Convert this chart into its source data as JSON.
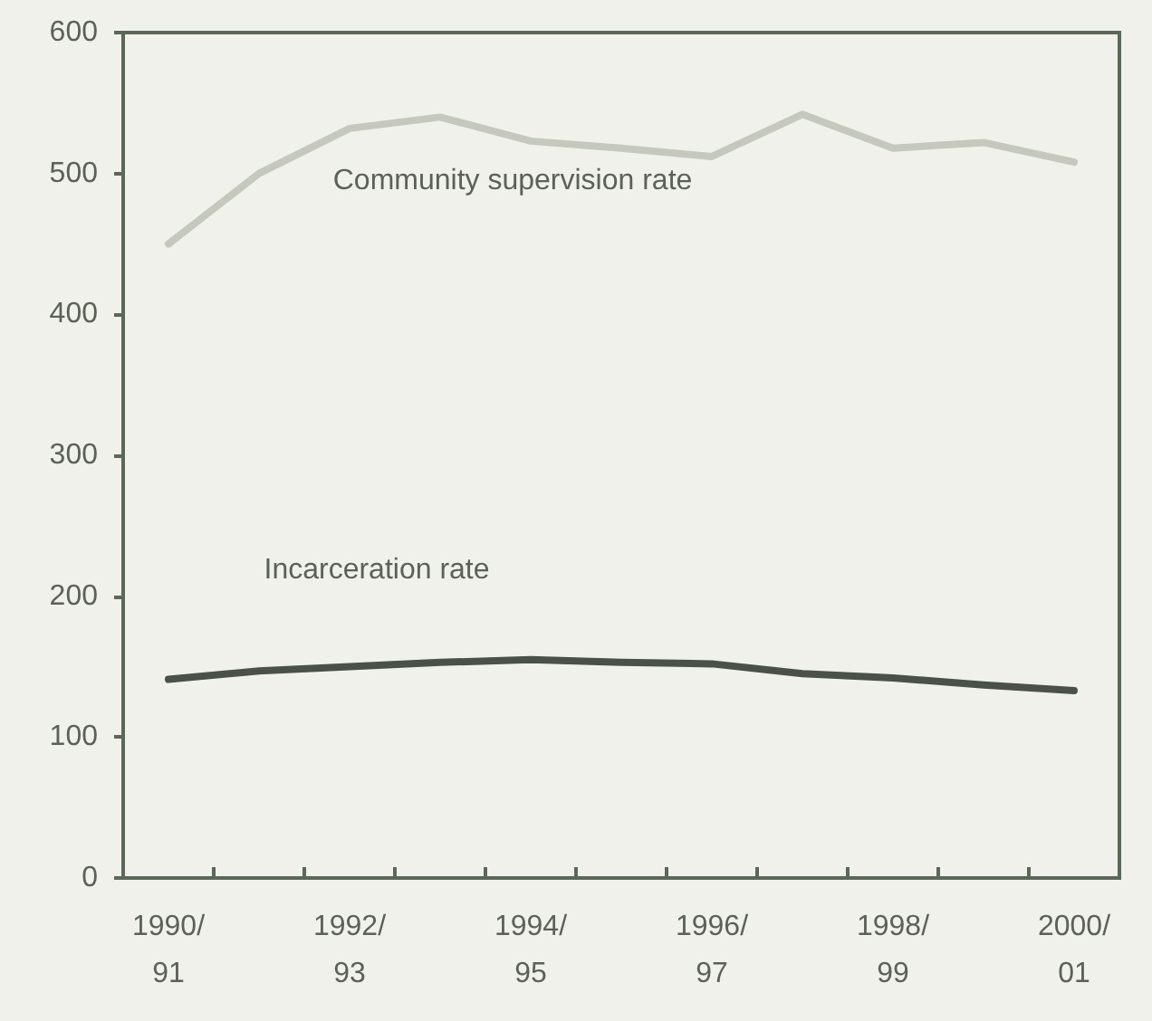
{
  "chart_data": {
    "type": "line",
    "categories": [
      "1990/\n91",
      null,
      "1992/\n93",
      null,
      "1994/\n95",
      null,
      "1996/\n97",
      null,
      "1998/\n99",
      null,
      "2000/\n01"
    ],
    "series": [
      {
        "name": "Community supervision rate",
        "color": "#c5c8bd",
        "values": [
          450,
          500,
          532,
          540,
          523,
          518,
          512,
          542,
          518,
          522,
          508
        ]
      },
      {
        "name": "Incarceration rate",
        "color": "#4a5148",
        "values": [
          141,
          147,
          150,
          153,
          155,
          153,
          152,
          145,
          142,
          137,
          133
        ]
      }
    ],
    "ylim": [
      0,
      600
    ],
    "yticks": [
      0,
      100,
      200,
      300,
      400,
      500,
      600
    ],
    "grid": false,
    "legend": false,
    "marker": "none",
    "line_style": "solid"
  }
}
